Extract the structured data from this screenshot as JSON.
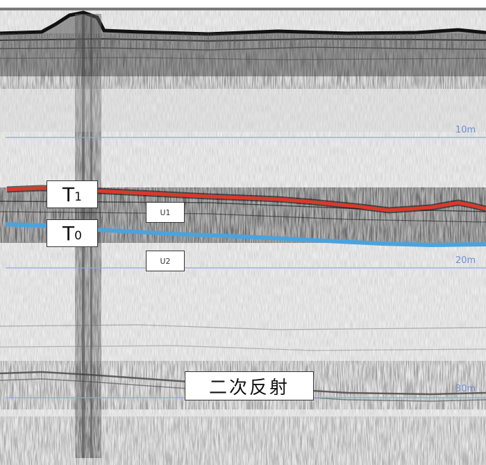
{
  "profile": {
    "depth_markers": [
      "10m",
      "20m",
      "30m"
    ],
    "horizons": [
      {
        "name": "T",
        "sub": "1",
        "color": "#d93a2b"
      },
      {
        "name": "T",
        "sub": "0",
        "color": "#4aa3dd"
      }
    ],
    "units": [
      "U1",
      "U2"
    ],
    "annotation": "二次反射"
  },
  "colors": {
    "depth_line": "#8fa8e8",
    "t1_line": "#d93a2b",
    "t0_line": "#4aa3dd",
    "seafloor": "#222222"
  }
}
